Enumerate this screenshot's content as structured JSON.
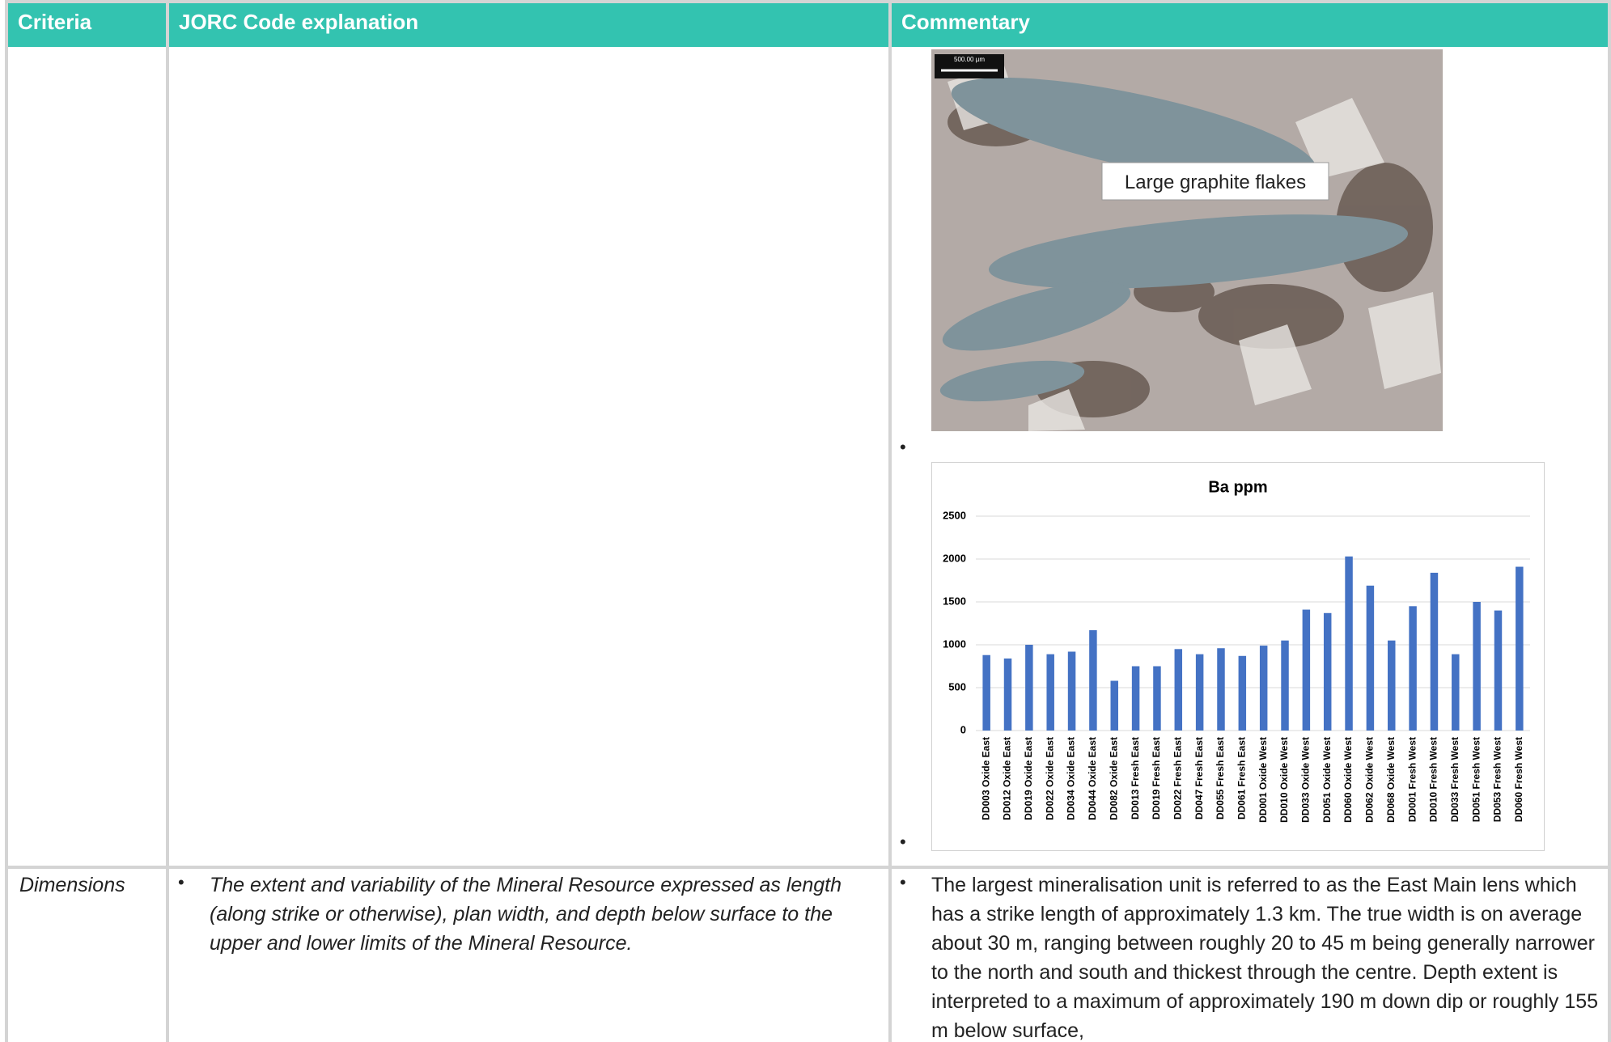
{
  "table": {
    "headers": [
      "Criteria",
      "JORC Code explanation",
      "Commentary"
    ],
    "rows": [
      {
        "commentary": {
          "image": {
            "scale_bar": "500.00 µm",
            "label": "Large graphite flakes"
          },
          "chart_data": {
            "type": "bar",
            "title": "Ba ppm",
            "categories": [
              "DD003 Oxide East",
              "DD012 Oxide East",
              "DD019 Oxide East",
              "DD022 Oxide East",
              "DD034 Oxide East",
              "DD044 Oxide East",
              "DD082 Oxide East",
              "DD013 Fresh East",
              "DD019 Fresh East",
              "DD022 Fresh East",
              "DD047 Fresh East",
              "DD055 Fresh East",
              "DD061 Fresh East",
              "DD001 Oxide West",
              "DD010 Oxide West",
              "DD033 Oxide West",
              "DD051 Oxide West",
              "DD060 Oxide West",
              "DD062 Oxide West",
              "DD068 Oxide West",
              "DD001 Fresh West",
              "DD010 Fresh West",
              "DD033 Fresh West",
              "DD051 Fresh West",
              "DD053 Fresh West",
              "DD060 Fresh West"
            ],
            "values": [
              880,
              840,
              1000,
              890,
              920,
              1170,
              580,
              750,
              750,
              950,
              890,
              960,
              870,
              990,
              1050,
              1410,
              1370,
              2030,
              1690,
              1050,
              1450,
              1840,
              890,
              1500,
              1400,
              1910
            ],
            "color": "#4472c4",
            "ylim": [
              0,
              2500
            ],
            "yticks": [
              0,
              500,
              1000,
              1500,
              2000,
              2500
            ],
            "grid": true
          }
        }
      },
      {
        "criteria": "Dimensions",
        "explanation": "The extent and variability of the Mineral Resource expressed as length (along strike or otherwise), plan width, and depth below surface to the upper and lower limits of the Mineral Resource.",
        "commentary": "The largest mineralisation unit is referred to as the East Main lens which has a strike length of approximately 1.3 km. The true width is on average about 30 m, ranging between roughly 20 to 45 m being generally narrower to the north and south and thickest through the centre. Depth extent is interpreted to a maximum of approximately 190 m down dip or roughly 155 m below surface,"
      }
    ]
  }
}
